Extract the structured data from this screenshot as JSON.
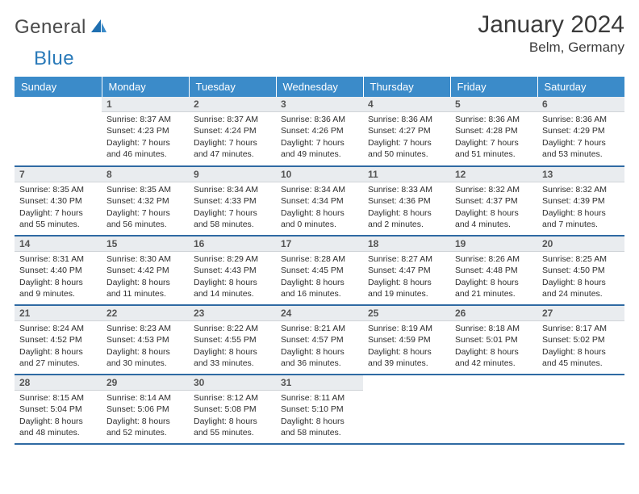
{
  "brand": {
    "name_a": "General",
    "name_b": "Blue"
  },
  "title": {
    "month": "January 2024",
    "location": "Belm, Germany"
  },
  "colors": {
    "header_bg": "#3b8bc9",
    "header_text": "#ffffff",
    "daynum_bg": "#e9ecef",
    "row_divider": "#2f6aa3",
    "brand_blue": "#2a7ab9",
    "text": "#333333"
  },
  "day_headers": [
    "Sunday",
    "Monday",
    "Tuesday",
    "Wednesday",
    "Thursday",
    "Friday",
    "Saturday"
  ],
  "weeks": [
    [
      {
        "n": "",
        "r": "",
        "s": "",
        "d": ""
      },
      {
        "n": "1",
        "r": "Sunrise: 8:37 AM",
        "s": "Sunset: 4:23 PM",
        "d": "Daylight: 7 hours and 46 minutes."
      },
      {
        "n": "2",
        "r": "Sunrise: 8:37 AM",
        "s": "Sunset: 4:24 PM",
        "d": "Daylight: 7 hours and 47 minutes."
      },
      {
        "n": "3",
        "r": "Sunrise: 8:36 AM",
        "s": "Sunset: 4:26 PM",
        "d": "Daylight: 7 hours and 49 minutes."
      },
      {
        "n": "4",
        "r": "Sunrise: 8:36 AM",
        "s": "Sunset: 4:27 PM",
        "d": "Daylight: 7 hours and 50 minutes."
      },
      {
        "n": "5",
        "r": "Sunrise: 8:36 AM",
        "s": "Sunset: 4:28 PM",
        "d": "Daylight: 7 hours and 51 minutes."
      },
      {
        "n": "6",
        "r": "Sunrise: 8:36 AM",
        "s": "Sunset: 4:29 PM",
        "d": "Daylight: 7 hours and 53 minutes."
      }
    ],
    [
      {
        "n": "7",
        "r": "Sunrise: 8:35 AM",
        "s": "Sunset: 4:30 PM",
        "d": "Daylight: 7 hours and 55 minutes."
      },
      {
        "n": "8",
        "r": "Sunrise: 8:35 AM",
        "s": "Sunset: 4:32 PM",
        "d": "Daylight: 7 hours and 56 minutes."
      },
      {
        "n": "9",
        "r": "Sunrise: 8:34 AM",
        "s": "Sunset: 4:33 PM",
        "d": "Daylight: 7 hours and 58 minutes."
      },
      {
        "n": "10",
        "r": "Sunrise: 8:34 AM",
        "s": "Sunset: 4:34 PM",
        "d": "Daylight: 8 hours and 0 minutes."
      },
      {
        "n": "11",
        "r": "Sunrise: 8:33 AM",
        "s": "Sunset: 4:36 PM",
        "d": "Daylight: 8 hours and 2 minutes."
      },
      {
        "n": "12",
        "r": "Sunrise: 8:32 AM",
        "s": "Sunset: 4:37 PM",
        "d": "Daylight: 8 hours and 4 minutes."
      },
      {
        "n": "13",
        "r": "Sunrise: 8:32 AM",
        "s": "Sunset: 4:39 PM",
        "d": "Daylight: 8 hours and 7 minutes."
      }
    ],
    [
      {
        "n": "14",
        "r": "Sunrise: 8:31 AM",
        "s": "Sunset: 4:40 PM",
        "d": "Daylight: 8 hours and 9 minutes."
      },
      {
        "n": "15",
        "r": "Sunrise: 8:30 AM",
        "s": "Sunset: 4:42 PM",
        "d": "Daylight: 8 hours and 11 minutes."
      },
      {
        "n": "16",
        "r": "Sunrise: 8:29 AM",
        "s": "Sunset: 4:43 PM",
        "d": "Daylight: 8 hours and 14 minutes."
      },
      {
        "n": "17",
        "r": "Sunrise: 8:28 AM",
        "s": "Sunset: 4:45 PM",
        "d": "Daylight: 8 hours and 16 minutes."
      },
      {
        "n": "18",
        "r": "Sunrise: 8:27 AM",
        "s": "Sunset: 4:47 PM",
        "d": "Daylight: 8 hours and 19 minutes."
      },
      {
        "n": "19",
        "r": "Sunrise: 8:26 AM",
        "s": "Sunset: 4:48 PM",
        "d": "Daylight: 8 hours and 21 minutes."
      },
      {
        "n": "20",
        "r": "Sunrise: 8:25 AM",
        "s": "Sunset: 4:50 PM",
        "d": "Daylight: 8 hours and 24 minutes."
      }
    ],
    [
      {
        "n": "21",
        "r": "Sunrise: 8:24 AM",
        "s": "Sunset: 4:52 PM",
        "d": "Daylight: 8 hours and 27 minutes."
      },
      {
        "n": "22",
        "r": "Sunrise: 8:23 AM",
        "s": "Sunset: 4:53 PM",
        "d": "Daylight: 8 hours and 30 minutes."
      },
      {
        "n": "23",
        "r": "Sunrise: 8:22 AM",
        "s": "Sunset: 4:55 PM",
        "d": "Daylight: 8 hours and 33 minutes."
      },
      {
        "n": "24",
        "r": "Sunrise: 8:21 AM",
        "s": "Sunset: 4:57 PM",
        "d": "Daylight: 8 hours and 36 minutes."
      },
      {
        "n": "25",
        "r": "Sunrise: 8:19 AM",
        "s": "Sunset: 4:59 PM",
        "d": "Daylight: 8 hours and 39 minutes."
      },
      {
        "n": "26",
        "r": "Sunrise: 8:18 AM",
        "s": "Sunset: 5:01 PM",
        "d": "Daylight: 8 hours and 42 minutes."
      },
      {
        "n": "27",
        "r": "Sunrise: 8:17 AM",
        "s": "Sunset: 5:02 PM",
        "d": "Daylight: 8 hours and 45 minutes."
      }
    ],
    [
      {
        "n": "28",
        "r": "Sunrise: 8:15 AM",
        "s": "Sunset: 5:04 PM",
        "d": "Daylight: 8 hours and 48 minutes."
      },
      {
        "n": "29",
        "r": "Sunrise: 8:14 AM",
        "s": "Sunset: 5:06 PM",
        "d": "Daylight: 8 hours and 52 minutes."
      },
      {
        "n": "30",
        "r": "Sunrise: 8:12 AM",
        "s": "Sunset: 5:08 PM",
        "d": "Daylight: 8 hours and 55 minutes."
      },
      {
        "n": "31",
        "r": "Sunrise: 8:11 AM",
        "s": "Sunset: 5:10 PM",
        "d": "Daylight: 8 hours and 58 minutes."
      },
      {
        "n": "",
        "r": "",
        "s": "",
        "d": ""
      },
      {
        "n": "",
        "r": "",
        "s": "",
        "d": ""
      },
      {
        "n": "",
        "r": "",
        "s": "",
        "d": ""
      }
    ]
  ]
}
